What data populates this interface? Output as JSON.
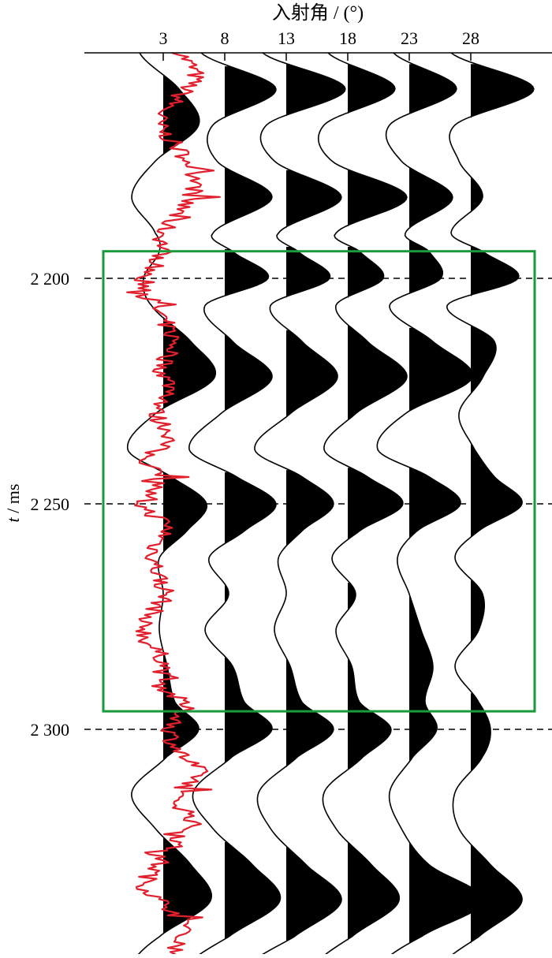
{
  "chart_data": {
    "type": "line",
    "title": "",
    "xlabel": "入射角 / (°)",
    "ylabel_italic": "t",
    "ylabel_rest": " / ms",
    "x_ticks": [
      3,
      8,
      13,
      18,
      23,
      28
    ],
    "y_ticks": [
      {
        "value": 2200,
        "label": "2 200"
      },
      {
        "value": 2250,
        "label": "2 250"
      },
      {
        "value": 2300,
        "label": "2 300"
      }
    ],
    "ylim": [
      2150,
      2352
    ],
    "dashed_reference_lines": [
      2200,
      2250,
      2300
    ],
    "highlight_box": {
      "t_start": 2194,
      "t_end": 2296,
      "color": "#1a9a3a"
    },
    "trace_color": "#000000",
    "fill_color": "#000000",
    "log_curve_color": "#e0202d",
    "trace_scale_deg_per_unit": 3.2,
    "sample_times": [
      2150,
      2158,
      2166,
      2174,
      2182,
      2190,
      2194,
      2200,
      2206,
      2214,
      2222,
      2230,
      2238,
      2244,
      2250,
      2256,
      2262,
      2270,
      2278,
      2286,
      2294,
      2300,
      2306,
      2314,
      2322,
      2330,
      2338,
      2346,
      2352
    ],
    "series": [
      {
        "angle": 3,
        "values": [
          -0.6,
          0.4,
          0.9,
          -0.2,
          -0.8,
          -0.2,
          -0.1,
          -0.5,
          -0.3,
          0.7,
          1.3,
          -0.2,
          -0.9,
          0.2,
          1.1,
          0.6,
          -0.1,
          0.0,
          -0.1,
          0.1,
          0.3,
          0.9,
          0.1,
          -0.8,
          -0.2,
          0.7,
          1.2,
          -0.1,
          -0.8
        ]
      },
      {
        "angle": 8,
        "values": [
          -0.6,
          1.3,
          -0.3,
          -0.2,
          1.2,
          -0.3,
          0.2,
          1.1,
          -0.5,
          0.2,
          1.2,
          -0.1,
          -0.9,
          0.3,
          1.3,
          0.5,
          -0.4,
          0.1,
          -0.5,
          0.2,
          0.5,
          1.2,
          0.2,
          -0.8,
          -0.3,
          0.7,
          1.4,
          0.1,
          -0.9
        ]
      },
      {
        "angle": 13,
        "values": [
          -0.6,
          1.5,
          -0.5,
          -0.3,
          1.4,
          -0.2,
          0.3,
          1.1,
          -0.4,
          0.4,
          1.3,
          0.1,
          -0.8,
          0.4,
          1.2,
          0.4,
          -0.2,
          0.0,
          -0.3,
          0.1,
          0.4,
          1.2,
          0.3,
          -0.7,
          -0.4,
          0.5,
          1.4,
          0.2,
          -0.9
        ]
      },
      {
        "angle": 18,
        "values": [
          -0.5,
          1.2,
          -0.6,
          -0.4,
          1.5,
          -0.3,
          0.3,
          0.9,
          -0.3,
          0.5,
          1.5,
          0.2,
          -0.6,
          0.5,
          1.4,
          0.3,
          -0.4,
          0.2,
          -0.3,
          0.1,
          0.3,
          1.1,
          0.4,
          -0.6,
          -0.3,
          0.6,
          1.3,
          0.1,
          -0.8
        ]
      },
      {
        "angle": 23,
        "values": [
          -0.4,
          1.2,
          -0.5,
          -0.2,
          1.1,
          -0.1,
          0.5,
          0.8,
          -0.5,
          0.6,
          1.6,
          -0.1,
          -0.8,
          0.5,
          1.3,
          0.2,
          -0.3,
          0.0,
          0.3,
          0.6,
          0.4,
          0.7,
          0.1,
          -0.5,
          -0.2,
          0.5,
          1.9,
          0.3,
          -0.7
        ]
      },
      {
        "angle": 28,
        "values": [
          -0.5,
          1.6,
          -0.4,
          -0.3,
          0.3,
          -0.5,
          0.3,
          1.2,
          -0.6,
          0.6,
          0.3,
          -0.3,
          0.1,
          0.6,
          1.3,
          0.2,
          -0.4,
          0.3,
          0.2,
          -0.4,
          0.2,
          0.5,
          0.3,
          -0.4,
          -0.3,
          0.5,
          1.3,
          0.2,
          -0.7
        ]
      }
    ],
    "log_curve": {
      "times": [
        2150,
        2155,
        2160,
        2165,
        2170,
        2175,
        2180,
        2185,
        2190,
        2195,
        2200,
        2205,
        2210,
        2215,
        2220,
        2225,
        2230,
        2235,
        2240,
        2245,
        2250,
        2255,
        2260,
        2265,
        2270,
        2275,
        2280,
        2285,
        2290,
        2295,
        2300,
        2305,
        2310,
        2315,
        2320,
        2325,
        2330,
        2335,
        2340,
        2345,
        2350
      ],
      "values": [
        4.5,
        5.6,
        4.2,
        2.6,
        3.8,
        5.3,
        5.6,
        4.3,
        3.0,
        2.9,
        1.6,
        2.1,
        3.2,
        3.9,
        2.9,
        3.7,
        2.4,
        3.6,
        1.7,
        2.7,
        1.2,
        3.3,
        2.3,
        2.5,
        3.2,
        1.9,
        1.6,
        3.1,
        2.8,
        4.7,
        3.6,
        4.3,
        5.9,
        3.9,
        5.4,
        4.1,
        2.6,
        1.6,
        3.7,
        5.1,
        3.7
      ]
    }
  }
}
